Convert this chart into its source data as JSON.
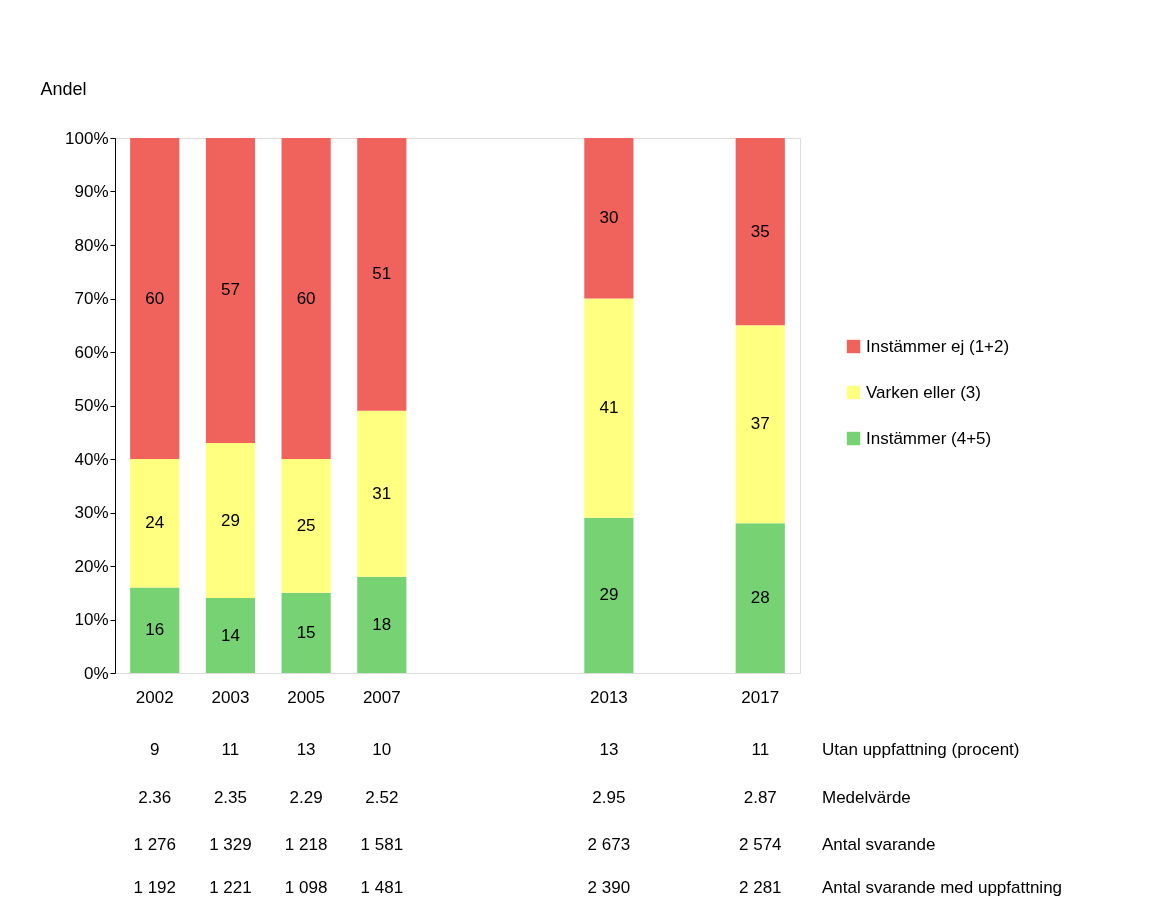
{
  "chart_data": {
    "type": "bar",
    "stacked": true,
    "ylabel": "Andel",
    "categories": [
      "2002",
      "2003",
      "2005",
      "2007",
      null,
      null,
      "2013",
      null,
      "2017"
    ],
    "series": [
      {
        "name": "Instämmer (4+5)",
        "color": "#77d274",
        "values": [
          16,
          14,
          15,
          18,
          null,
          null,
          29,
          null,
          28
        ]
      },
      {
        "name": "Varken eller (3)",
        "color": "#ffff80",
        "values": [
          24,
          29,
          25,
          31,
          null,
          null,
          41,
          null,
          37
        ]
      },
      {
        "name": "Instämmer ej (1+2)",
        "color": "#f0625c",
        "values": [
          60,
          57,
          60,
          51,
          null,
          null,
          30,
          null,
          35
        ]
      }
    ],
    "ylim": [
      0,
      100
    ],
    "yticks": [
      {
        "value": 0,
        "label": "0%"
      },
      {
        "value": 10,
        "label": "10%"
      },
      {
        "value": 20,
        "label": "20%"
      },
      {
        "value": 30,
        "label": "30%"
      },
      {
        "value": 40,
        "label": "40%"
      },
      {
        "value": 50,
        "label": "50%"
      },
      {
        "value": 60,
        "label": "60%"
      },
      {
        "value": 70,
        "label": "70%"
      },
      {
        "value": 80,
        "label": "80%"
      },
      {
        "value": 90,
        "label": "90%"
      },
      {
        "value": 100,
        "label": "100%"
      }
    ],
    "data_labels": true,
    "grid": false,
    "legend": "right",
    "annotations": [
      "9",
      "11",
      "13",
      "10",
      "13",
      "11",
      "Utan uppfattning (procent)",
      "2.36",
      "2.35",
      "2.29",
      "2.52",
      "2.95",
      "2.87",
      "Medelvärde",
      "1 276",
      "1 329",
      "1 218",
      "1 581",
      "2 673",
      "2 574",
      "Antal svarande",
      "1 192",
      "1 221",
      "1 098",
      "1 481",
      "2 390",
      "2 281",
      "Antal svarande med uppfattning"
    ]
  }
}
